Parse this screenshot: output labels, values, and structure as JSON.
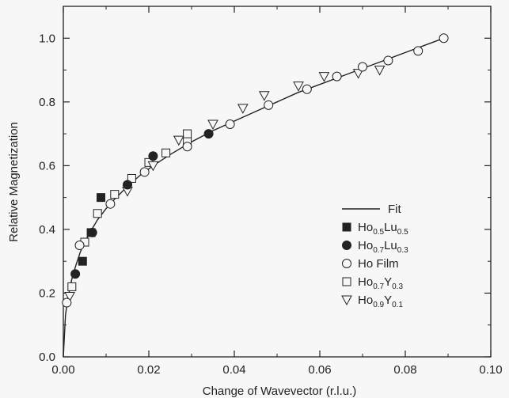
{
  "chart_data": {
    "type": "scatter",
    "title": "",
    "xlabel": "Change of Wavevector  (r.l.u.)",
    "ylabel": "Relative Magnetization",
    "xlim": [
      0.0,
      0.1
    ],
    "ylim": [
      0.0,
      1.1
    ],
    "xticks": [
      "0.00",
      "0.02",
      "0.04",
      "0.06",
      "0.08",
      "0.10"
    ],
    "yticks": [
      "0.0",
      "0.2",
      "0.4",
      "0.6",
      "0.8",
      "1.0"
    ],
    "grid": false,
    "legend_position": "bottom-right",
    "fit": {
      "name": "Fit",
      "x": [
        0.0,
        0.0005,
        0.001,
        0.002,
        0.003,
        0.004,
        0.005,
        0.006,
        0.008,
        0.01,
        0.012,
        0.015,
        0.018,
        0.021,
        0.025,
        0.03,
        0.035,
        0.04,
        0.045,
        0.05,
        0.055,
        0.06,
        0.065,
        0.07,
        0.075,
        0.08,
        0.085,
        0.089
      ],
      "y": [
        0.0,
        0.13,
        0.18,
        0.245,
        0.29,
        0.33,
        0.36,
        0.385,
        0.43,
        0.465,
        0.495,
        0.535,
        0.57,
        0.6,
        0.635,
        0.675,
        0.71,
        0.74,
        0.77,
        0.8,
        0.83,
        0.855,
        0.88,
        0.905,
        0.93,
        0.955,
        0.98,
        1.0
      ]
    },
    "series": [
      {
        "name_main": "Ho",
        "name_sub1": "0.5",
        "name_mid": "Lu",
        "name_sub2": "0.5",
        "marker": "filled-square",
        "x": [
          0.0045,
          0.0065,
          0.0088
        ],
        "y": [
          0.3,
          0.39,
          0.5
        ]
      },
      {
        "name_main": "Ho",
        "name_sub1": "0.7",
        "name_mid": "Lu",
        "name_sub2": "0.3",
        "marker": "filled-circle",
        "x": [
          0.0028,
          0.0068,
          0.015,
          0.021,
          0.034
        ],
        "y": [
          0.26,
          0.39,
          0.54,
          0.63,
          0.7
        ]
      },
      {
        "name_main": "Ho Film",
        "name_sub1": "",
        "name_mid": "",
        "name_sub2": "",
        "marker": "open-circle",
        "x": [
          0.0008,
          0.0038,
          0.011,
          0.019,
          0.029,
          0.039,
          0.048,
          0.057,
          0.064,
          0.07,
          0.076,
          0.083,
          0.089
        ],
        "y": [
          0.17,
          0.35,
          0.48,
          0.58,
          0.66,
          0.73,
          0.79,
          0.84,
          0.88,
          0.91,
          0.93,
          0.96,
          1.0
        ]
      },
      {
        "name_main": "Ho",
        "name_sub1": "0.7",
        "name_mid": "Y",
        "name_sub2": "0.3",
        "marker": "open-square",
        "x": [
          0.002,
          0.005,
          0.008,
          0.012,
          0.016,
          0.02,
          0.024,
          0.029,
          0.029
        ],
        "y": [
          0.22,
          0.36,
          0.45,
          0.51,
          0.56,
          0.61,
          0.64,
          0.68,
          0.7
        ]
      },
      {
        "name_main": "Ho",
        "name_sub1": "0.9",
        "name_mid": "Y",
        "name_sub2": "0.1",
        "marker": "open-triangle-down",
        "x": [
          0.0015,
          0.015,
          0.021,
          0.027,
          0.035,
          0.042,
          0.047,
          0.055,
          0.061,
          0.069,
          0.074
        ],
        "y": [
          0.19,
          0.52,
          0.6,
          0.68,
          0.73,
          0.78,
          0.82,
          0.85,
          0.88,
          0.89,
          0.9
        ]
      }
    ]
  }
}
